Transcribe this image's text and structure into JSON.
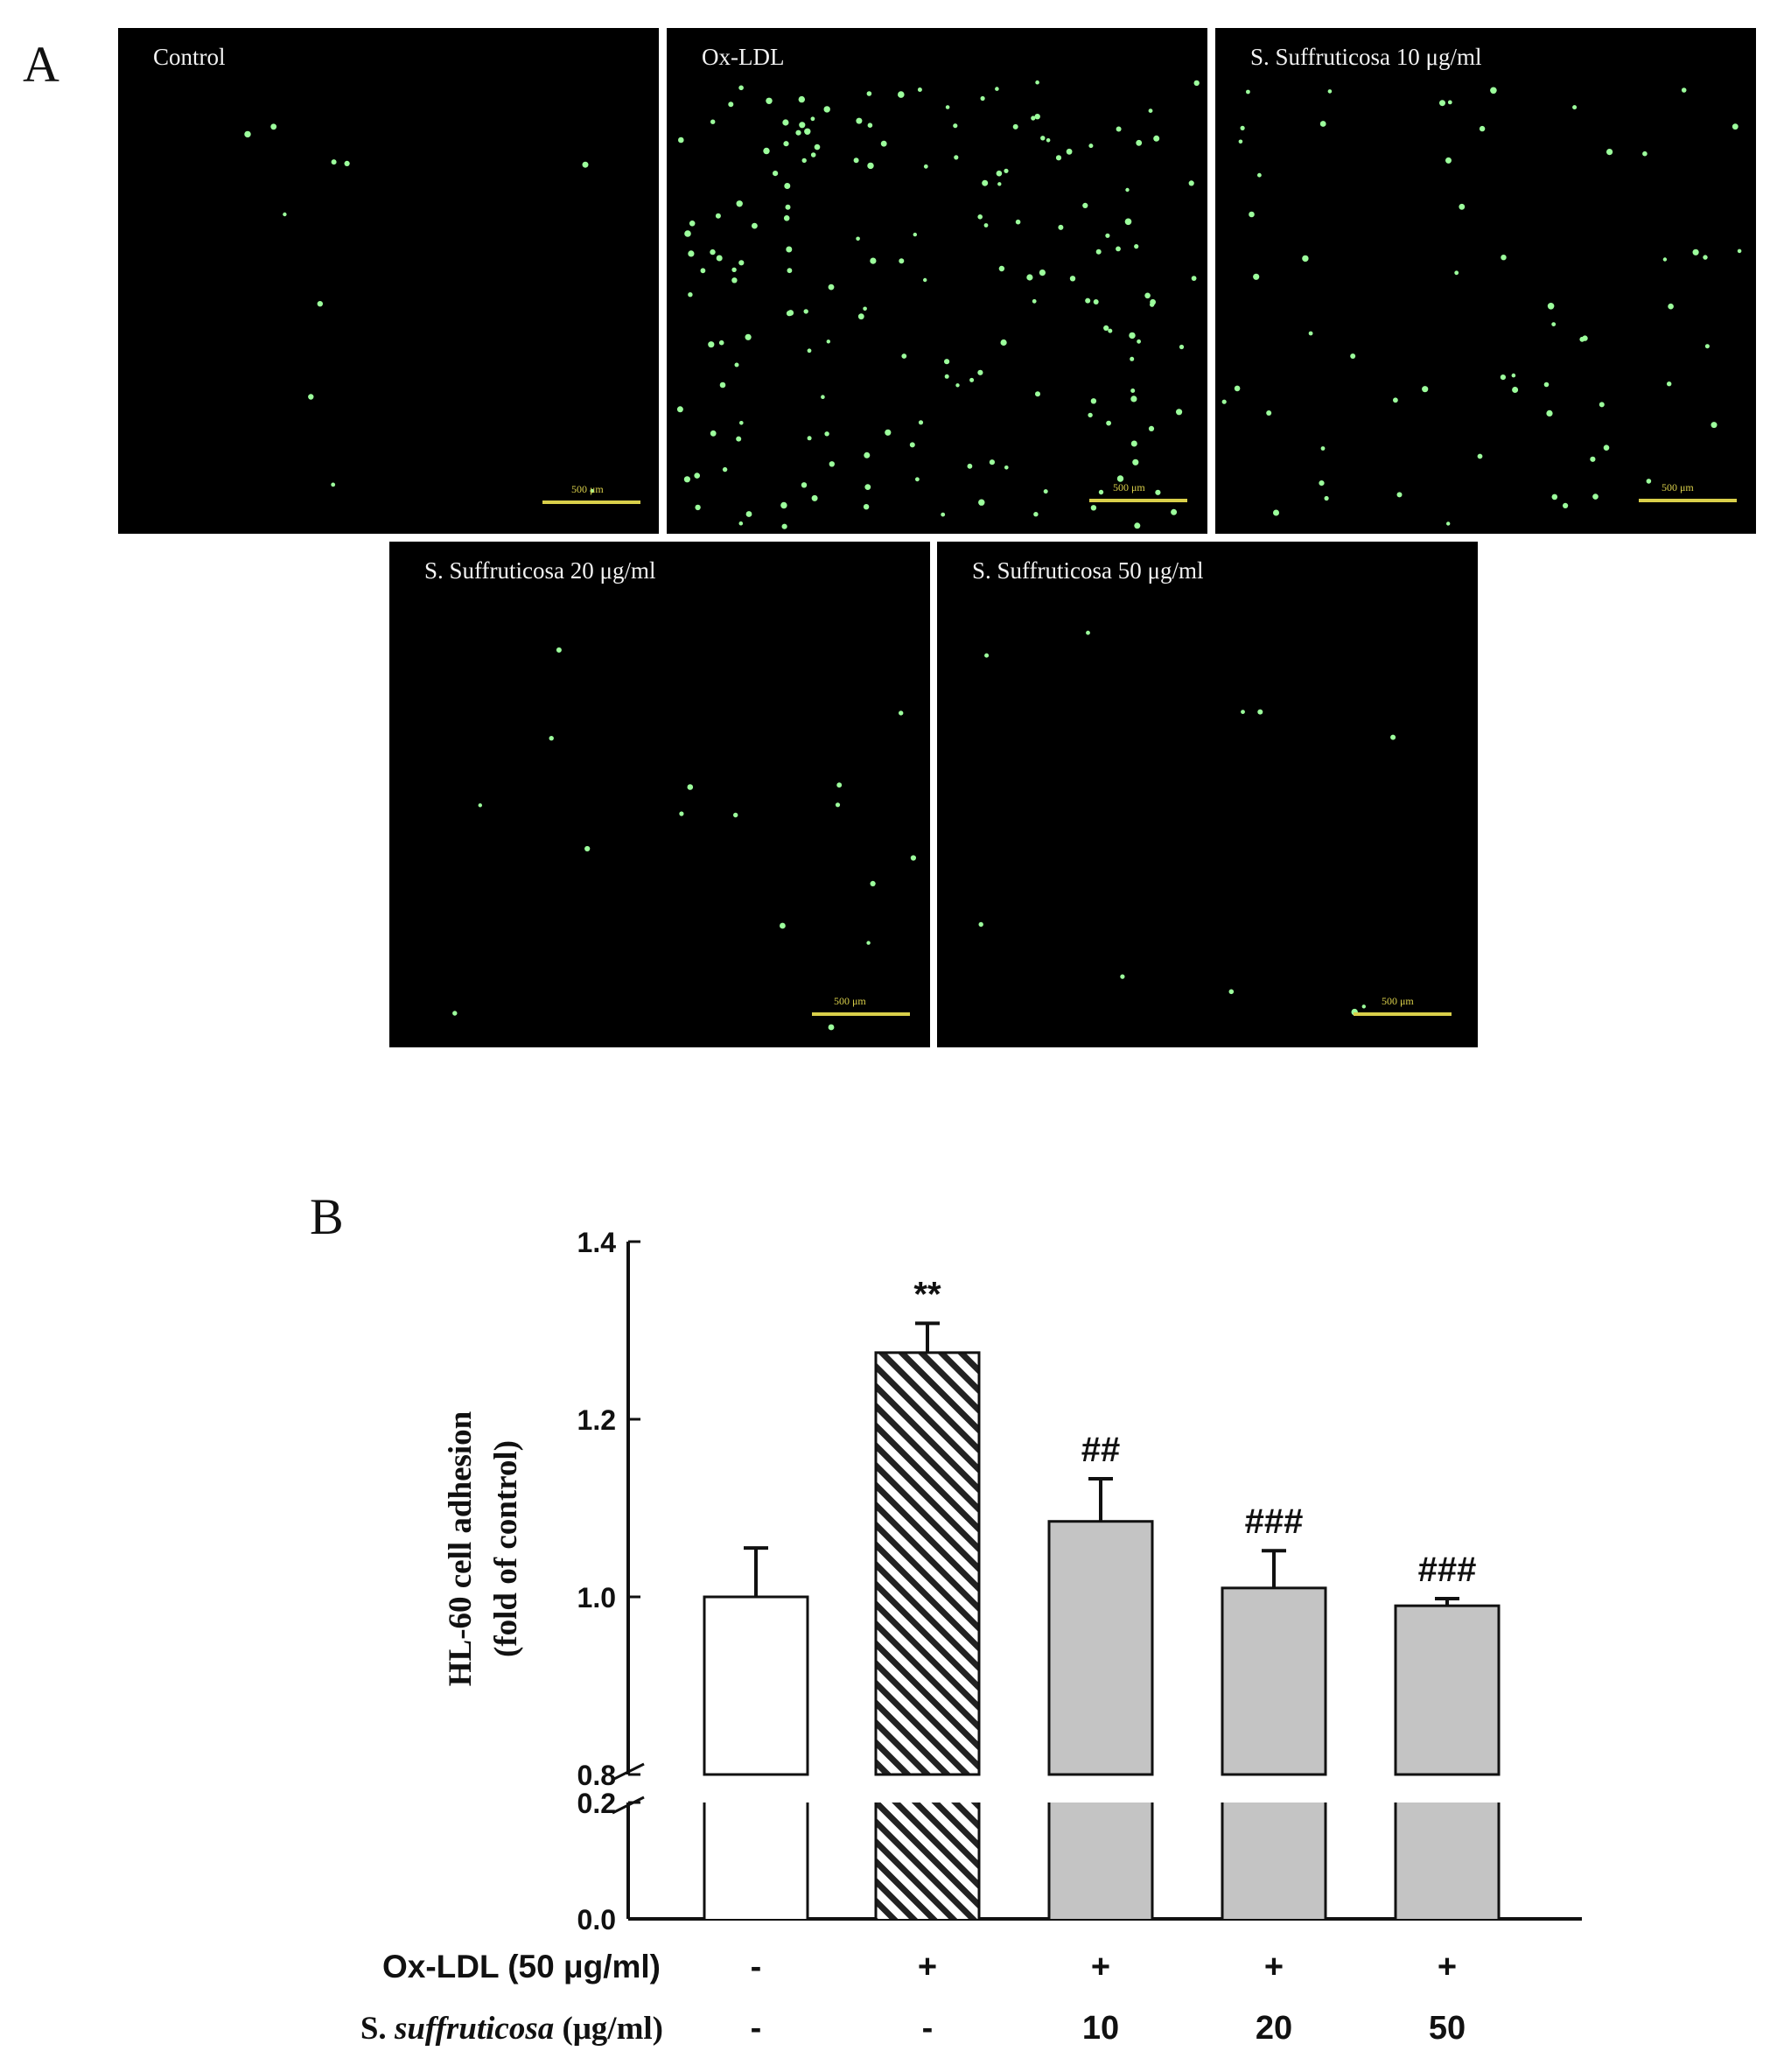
{
  "panel_a": {
    "letter": "A",
    "images": [
      {
        "label": "Control",
        "scale_label": "500 μm"
      },
      {
        "label": "Ox-LDL",
        "scale_label": "500 μm"
      },
      {
        "label": "S. Suffruticosa 10 μg/ml",
        "scale_label": "500 μm"
      },
      {
        "label": "S. Suffruticosa 20 μg/ml",
        "scale_label": "500 μm"
      },
      {
        "label": "S. Suffruticosa 50 μg/ml",
        "scale_label": "500 μm"
      }
    ],
    "cell_color": "#9cff9c"
  },
  "panel_b": {
    "letter": "B",
    "row_labels": {
      "oxldl_prefix": "Ox-LDL (50 μg/ml)",
      "ss_prefix": "S. ",
      "ss_italic": "suffruticosa",
      "ss_suffix": " (μg/ml)"
    }
  },
  "chart_data": {
    "type": "bar",
    "ylabel_line1": "HL-60 cell adhesion",
    "ylabel_line2": "(fold of control)",
    "y_axis_broken": true,
    "y_upper_range": [
      0.8,
      1.4
    ],
    "y_lower_range": [
      0.0,
      0.2
    ],
    "y_ticks": [
      "0.0",
      "0.2",
      "0.8",
      "1.0",
      "1.2",
      "1.4"
    ],
    "bars": [
      {
        "value": 1.0,
        "error": 0.055,
        "annotation": "",
        "fill": "#ffffff",
        "pattern": "none",
        "oxldl": "-",
        "ss": "-"
      },
      {
        "value": 1.275,
        "error": 0.033,
        "annotation": "**",
        "fill": "#ffffff",
        "pattern": "hatch",
        "oxldl": "+",
        "ss": "-"
      },
      {
        "value": 1.085,
        "error": 0.048,
        "annotation": "##",
        "fill": "#c4c4c4",
        "pattern": "none",
        "oxldl": "+",
        "ss": "10"
      },
      {
        "value": 1.01,
        "error": 0.042,
        "annotation": "###",
        "fill": "#c4c4c4",
        "pattern": "none",
        "oxldl": "+",
        "ss": "20"
      },
      {
        "value": 0.99,
        "error": 0.008,
        "annotation": "###",
        "fill": "#c4c4c4",
        "pattern": "none",
        "oxldl": "+",
        "ss": "50"
      }
    ]
  }
}
